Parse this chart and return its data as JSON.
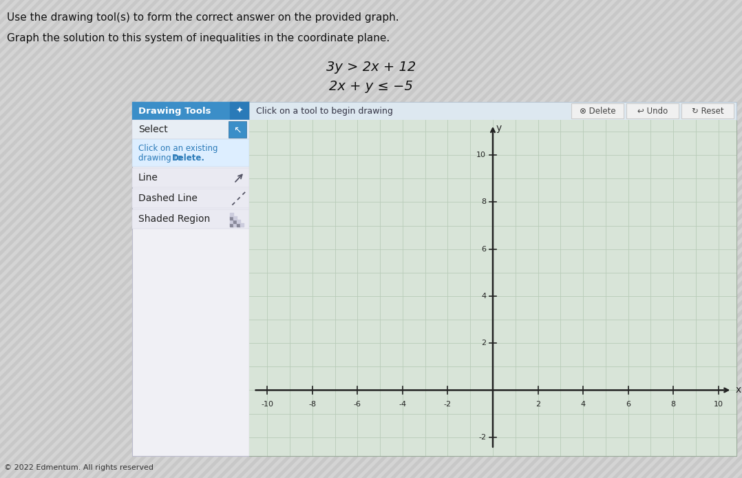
{
  "title_line1": "Use the drawing tool(s) to form the correct answer on the provided graph.",
  "title_line2": "Graph the solution to this system of inequalities in the coordinate plane.",
  "eq1_display": "3y > 2x + 12",
  "eq2_display": "2x + y ≤ −5",
  "toolbar_text": "Drawing Tools",
  "select_text": "Select",
  "hint_line1": "Click on an existing",
  "hint_line2": "drawing to ",
  "hint_bold": "Delete.",
  "line_text": "Line",
  "dashed_text": "Dashed Line",
  "shaded_text": "Shaded Region",
  "click_hint": "Click on a tool to begin drawing",
  "delete_text": "Delete",
  "undo_text": "Undo",
  "reset_text": "Reset",
  "copyright": "© 2022 Edmentum. All rights reserved",
  "bg_stripe_color": "#c8c8c8",
  "bg_stripe_light": "#d4d4d4",
  "panel_bg": "#f0f0f5",
  "panel_border": "#bbbbcc",
  "toolbar_bg": "#3b8ec8",
  "toolbar_bg2": "#2a7ab8",
  "select_bg": "#e8eef5",
  "hint_bg": "#ddeeff",
  "row_bg": "#eaeaf2",
  "graph_area_bg": "#d8e4d8",
  "topbar_bg": "#dde8f0",
  "button_bg": "#f0f0f0",
  "button_border": "#cccccc",
  "xmin": -10,
  "xmax": 10,
  "ytick_labels": [
    2,
    4,
    6,
    8,
    10
  ],
  "xtick_labels": [
    -10,
    -8,
    -6,
    -4,
    -2,
    2,
    4,
    6,
    8,
    10
  ],
  "grid_color": "#b8ccb8",
  "axis_color": "#222222"
}
